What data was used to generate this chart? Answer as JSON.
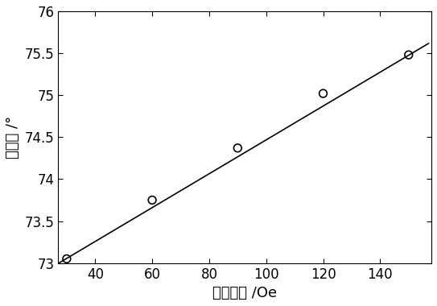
{
  "x_data": [
    30,
    60,
    90,
    120,
    150
  ],
  "y_data": [
    73.05,
    73.75,
    74.37,
    75.02,
    75.48
  ],
  "fit_x": [
    27,
    157
  ],
  "fit_slope": 0.02017,
  "fit_intercept": 72.45,
  "xlabel": "磁场强度 /Oe",
  "ylabel": "共振角 /°",
  "xlim": [
    27,
    158
  ],
  "ylim": [
    73.0,
    76.0
  ],
  "xticks": [
    40,
    60,
    80,
    100,
    120,
    140
  ],
  "yticks": [
    73.0,
    73.5,
    74.0,
    74.5,
    75.0,
    75.5,
    76.0
  ],
  "line_color": "#000000",
  "marker_color": "#000000",
  "background_color": "#ffffff",
  "marker_size": 7,
  "line_width": 1.2,
  "xlabel_fontsize": 13,
  "ylabel_fontsize": 13,
  "tick_fontsize": 12
}
